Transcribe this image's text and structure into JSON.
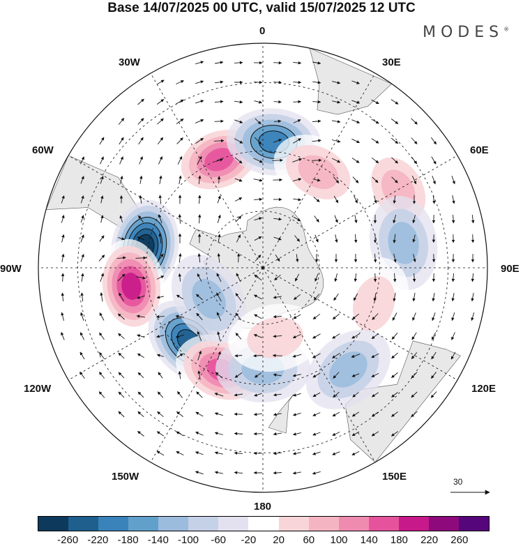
{
  "header": {
    "title": "Base 14/07/2025 00 UTC, valid 15/07/2025 12 UTC",
    "brand": "MODES",
    "brand_mark": "®"
  },
  "map": {
    "projection": "south-polar-stereographic",
    "longitude_labels": {
      "top": "0",
      "bottom": "180",
      "left": "90W",
      "right": "90E",
      "upper_left_1": "30W",
      "upper_left_2": "60W",
      "upper_right_1": "30E",
      "upper_right_2": "60E",
      "lower_left_1": "120W",
      "lower_left_2": "150W",
      "lower_right_1": "120E",
      "lower_right_2": "150E"
    },
    "reference_vector_label": "30",
    "land_color": "#e8e8e8",
    "anomaly_centers": [
      {
        "lon": -80,
        "lat": -49,
        "sign": "negative",
        "peak": -220
      },
      {
        "lon": -98,
        "lat": -45,
        "sign": "positive",
        "peak": 200
      },
      {
        "lon": -135,
        "lat": -54,
        "sign": "negative",
        "peak": -180
      },
      {
        "lon": -158,
        "lat": -52,
        "sign": "positive",
        "peak": 140
      },
      {
        "lon": -22,
        "lat": -50,
        "sign": "positive",
        "peak": 140
      },
      {
        "lon": 5,
        "lat": -47,
        "sign": "negative",
        "peak": -160
      },
      {
        "lon": 30,
        "lat": -52,
        "sign": "positive",
        "peak": 80
      },
      {
        "lon": 60,
        "lat": -38,
        "sign": "positive",
        "peak": 60
      },
      {
        "lon": 80,
        "lat": -42,
        "sign": "negative",
        "peak": -60
      },
      {
        "lon": 108,
        "lat": -50,
        "sign": "positive",
        "peak": 40
      },
      {
        "lon": 140,
        "lat": -45,
        "sign": "negative",
        "peak": -60
      },
      {
        "lon": 180,
        "lat": -55,
        "sign": "negative",
        "peak": -80
      },
      {
        "lon": -120,
        "lat": -68,
        "sign": "negative",
        "peak": -60
      },
      {
        "lon": 170,
        "lat": -65,
        "sign": "positive",
        "peak": 40
      }
    ]
  },
  "colorbar": {
    "ticks": [
      "-260",
      "-220",
      "-180",
      "-140",
      "-100",
      "-60",
      "-20",
      "20",
      "60",
      "100",
      "140",
      "180",
      "220",
      "260"
    ],
    "colors": [
      "#0d3a5c",
      "#1f5f8e",
      "#3a82ba",
      "#62a0cc",
      "#9cbcdd",
      "#c5d1e7",
      "#e3e1ef",
      "#ffffff",
      "#f8d5d8",
      "#f5b4c2",
      "#f08bb0",
      "#e5539c",
      "#c8198a",
      "#8e0a7c",
      "#55067a"
    ]
  }
}
